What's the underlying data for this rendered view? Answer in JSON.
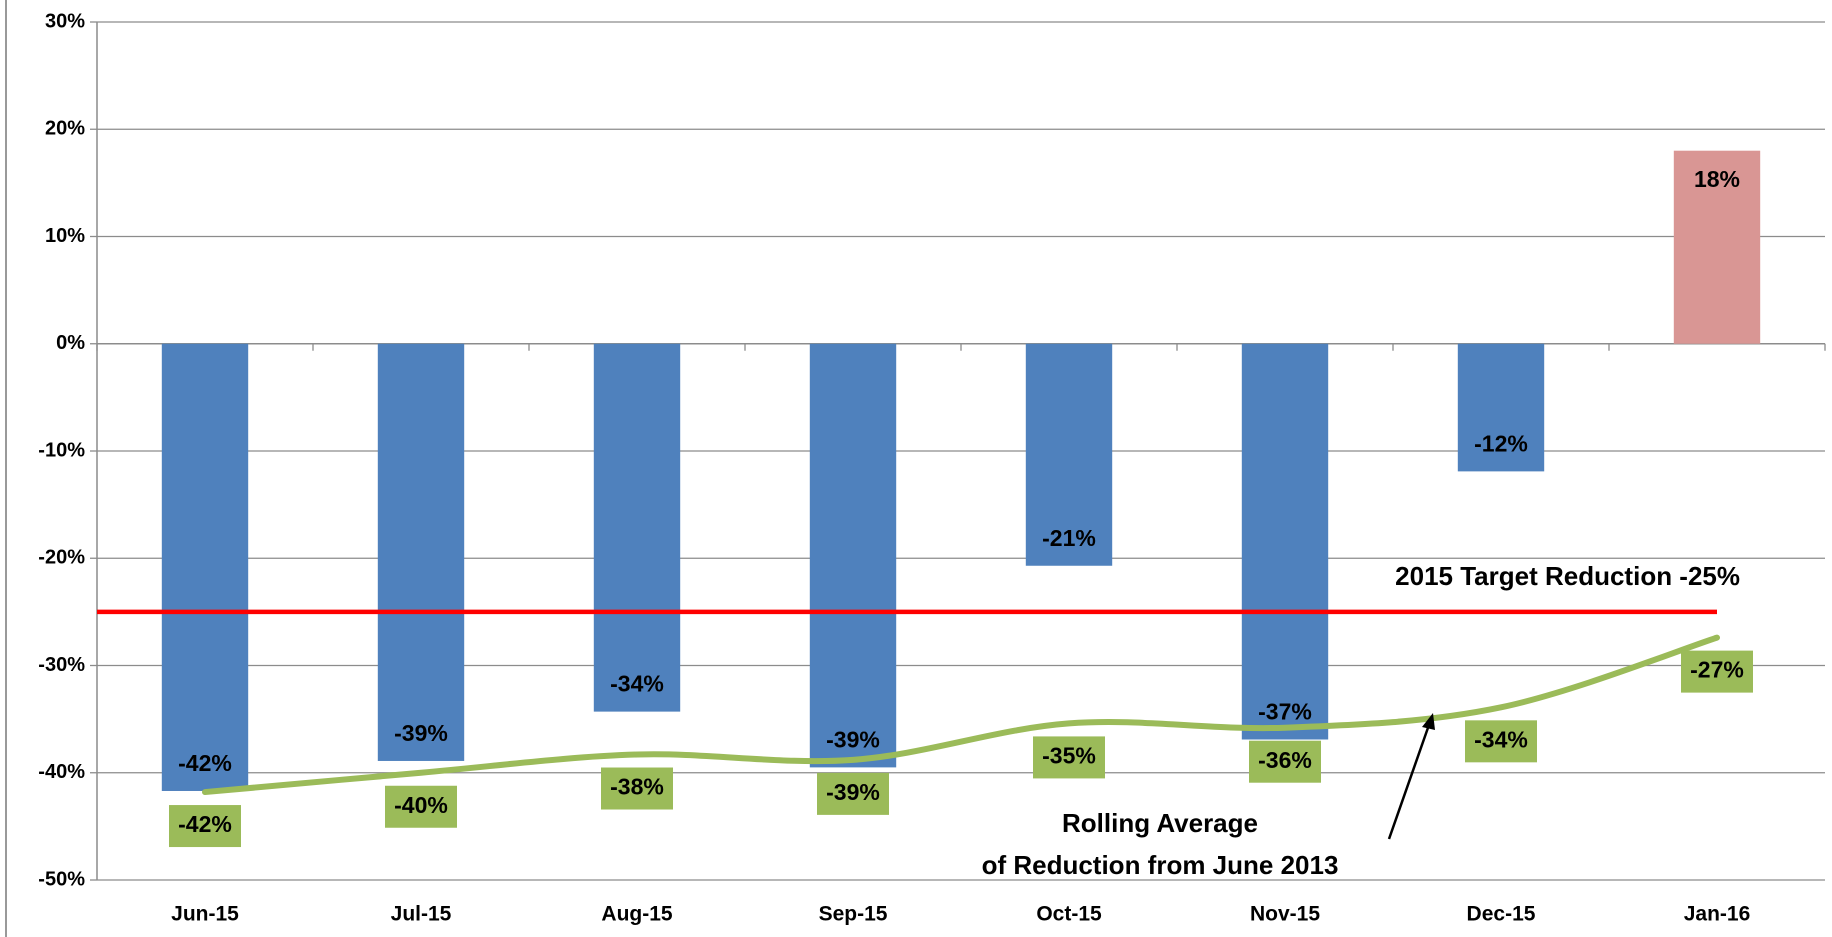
{
  "chart_data": {
    "type": "bar",
    "categories": [
      "Jun-15",
      "Jul-15",
      "Aug-15",
      "Sep-15",
      "Oct-15",
      "Nov-15",
      "Dec-15",
      "Jan-16"
    ],
    "series": [
      {
        "type": "bar",
        "colors": [
          "#4f81bd",
          "#4f81bd",
          "#4f81bd",
          "#4f81bd",
          "#4f81bd",
          "#4f81bd",
          "#4f81bd",
          "#d99694"
        ],
        "values": [
          -41.7,
          -38.9,
          -34.3,
          -39.5,
          -20.7,
          -36.9,
          -11.9,
          18.0
        ],
        "value_labels": [
          "-42%",
          "-39%",
          "-34%",
          "-39%",
          "-21%",
          "-37%",
          "-12%",
          "18%"
        ]
      },
      {
        "type": "line",
        "color": "#9bbb59",
        "values": [
          -41.8,
          -40.0,
          -38.3,
          -38.8,
          -35.4,
          -35.8,
          -33.9,
          -27.4
        ],
        "value_labels": [
          "-42%",
          "-40%",
          "-38%",
          "-39%",
          "-35%",
          "-36%",
          "-34%",
          "-27%"
        ]
      }
    ],
    "reference_line": {
      "value": -25,
      "label": "2015 Target Reduction -25%",
      "color": "#ff0000"
    },
    "annotation": [
      "Rolling Average",
      "of Reduction from June 2013"
    ],
    "ylim": [
      -50,
      30
    ],
    "yticks": [
      {
        "value": -50,
        "label": "-50%"
      },
      {
        "value": -40,
        "label": "-40%"
      },
      {
        "value": -30,
        "label": "-30%"
      },
      {
        "value": -20,
        "label": "-20%"
      },
      {
        "value": -10,
        "label": "-10%"
      },
      {
        "value": 0,
        "label": "0%"
      },
      {
        "value": 10,
        "label": "10%"
      },
      {
        "value": 20,
        "label": "20%"
      },
      {
        "value": 30,
        "label": "30%"
      }
    ],
    "grid": true
  }
}
